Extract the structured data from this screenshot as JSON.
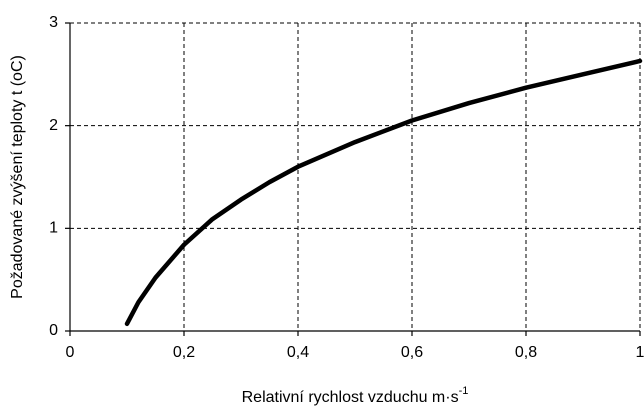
{
  "chart_data": {
    "type": "line",
    "xlabel": {
      "text": "Relativní rychlost vzduchu m·s",
      "superscript": "-1"
    },
    "ylabel": "Požadované zvýšení teploty t (oC)",
    "x": [
      0.1,
      0.12,
      0.15,
      0.2,
      0.25,
      0.3,
      0.35,
      0.4,
      0.5,
      0.6,
      0.7,
      0.8,
      0.9,
      1.0
    ],
    "series": [
      {
        "color": "#000000",
        "values": [
          0.07,
          0.28,
          0.52,
          0.84,
          1.09,
          1.28,
          1.45,
          1.6,
          1.84,
          2.05,
          2.22,
          2.37,
          2.5,
          2.63
        ]
      }
    ],
    "xlim": [
      0,
      1
    ],
    "ylim": [
      0,
      3
    ],
    "xticks": [
      0,
      {
        "value": 0.2,
        "label": "0,2"
      },
      {
        "value": 0.4,
        "label": "0,4"
      },
      {
        "value": 0.6,
        "label": "0,6"
      },
      {
        "value": 0.8,
        "label": "0,8"
      },
      1
    ],
    "yticks": [
      0,
      1,
      2,
      3
    ],
    "grid": true
  }
}
